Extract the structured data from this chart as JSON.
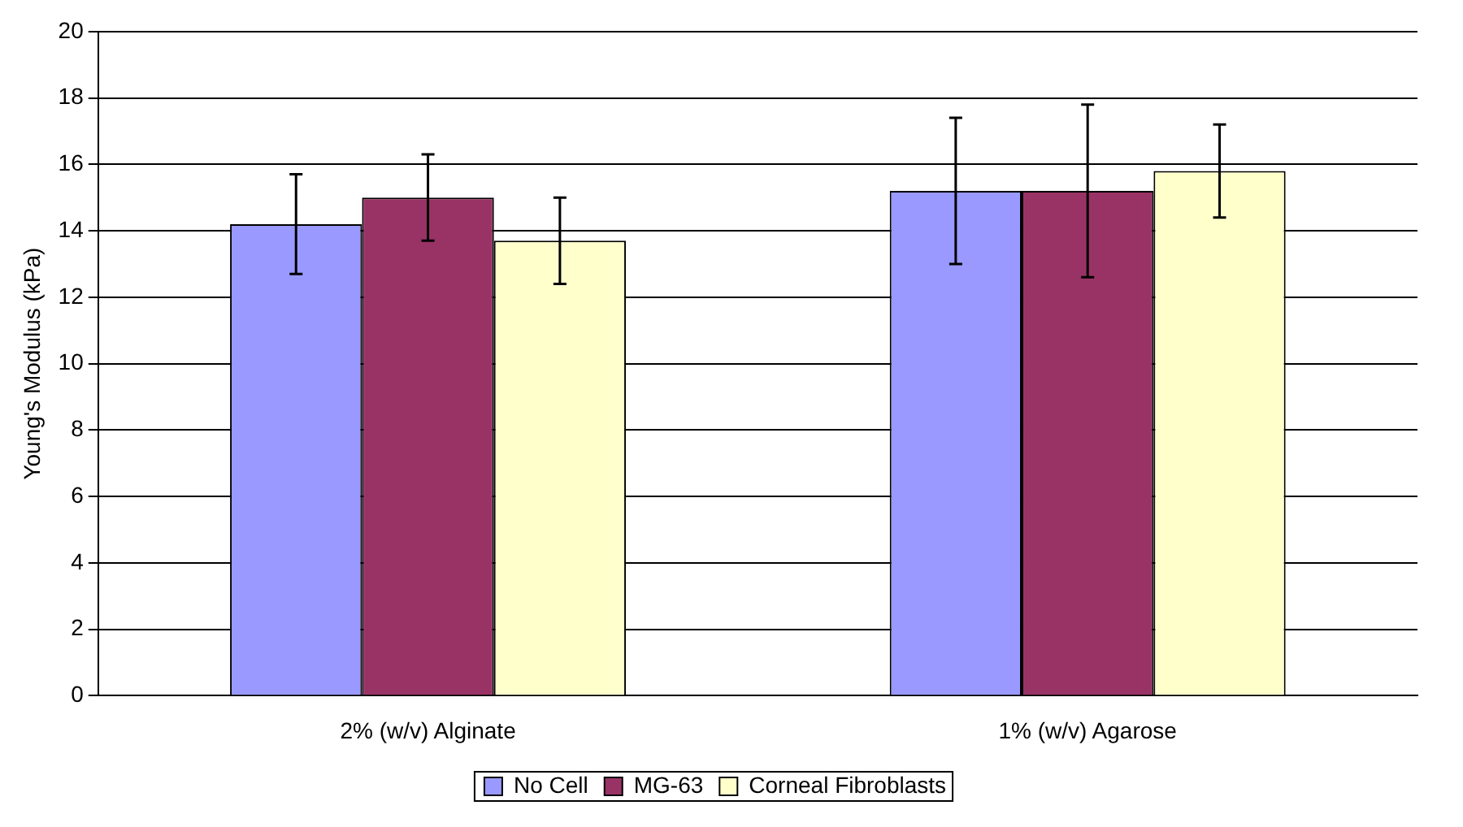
{
  "chart_data": {
    "type": "bar",
    "ylabel": "Young's Modulus (kPa)",
    "categories": [
      "2% (w/v) Alginate",
      "1% (w/v) Agarose"
    ],
    "series": [
      {
        "name": "No Cell",
        "color": "#9999ff",
        "values": [
          14.2,
          15.2
        ],
        "errors": [
          1.5,
          2.2
        ]
      },
      {
        "name": "MG-63",
        "color": "#993366",
        "values": [
          15.0,
          15.2
        ],
        "errors": [
          1.3,
          2.6
        ]
      },
      {
        "name": "Corneal Fibroblasts",
        "color": "#ffffcc",
        "values": [
          13.7,
          15.8
        ],
        "errors": [
          1.3,
          1.4
        ]
      }
    ],
    "ylim": [
      0,
      20
    ],
    "yticks": [
      0,
      2,
      4,
      6,
      8,
      10,
      12,
      14,
      16,
      18,
      20
    ],
    "grid": "y",
    "legend": "bottom"
  }
}
